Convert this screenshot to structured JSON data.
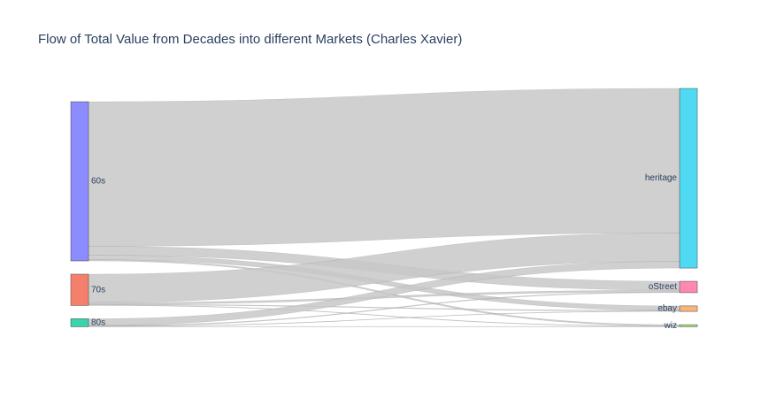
{
  "chart_data": {
    "type": "sankey",
    "title": "Flow of Total Value from Decades into different Markets (Charles Xavier)",
    "nodes": [
      {
        "id": "60s",
        "label": "60s",
        "color": "#8c8cff",
        "side": "source"
      },
      {
        "id": "70s",
        "label": "70s",
        "color": "#f4806c",
        "side": "source"
      },
      {
        "id": "80s",
        "label": "80s",
        "color": "#3ad3ad",
        "side": "source"
      },
      {
        "id": "heritage",
        "label": "heritage",
        "color": "#4fd9f2",
        "side": "target"
      },
      {
        "id": "oStreet",
        "label": "oStreet",
        "color": "#ff89b0",
        "side": "target"
      },
      {
        "id": "ebay",
        "label": "ebay",
        "color": "#f9b47c",
        "side": "target"
      },
      {
        "id": "wiz",
        "label": "wiz",
        "color": "#a7e27a",
        "side": "target"
      }
    ],
    "links": [
      {
        "source": "60s",
        "target": "heritage",
        "value": 163
      },
      {
        "source": "60s",
        "target": "oStreet",
        "value": 10
      },
      {
        "source": "60s",
        "target": "ebay",
        "value": 5
      },
      {
        "source": "60s",
        "target": "wiz",
        "value": 1.5
      },
      {
        "source": "70s",
        "target": "heritage",
        "value": 32
      },
      {
        "source": "70s",
        "target": "oStreet",
        "value": 2
      },
      {
        "source": "70s",
        "target": "ebay",
        "value": 0.8
      },
      {
        "source": "70s",
        "target": "wiz",
        "value": 0.5
      },
      {
        "source": "80s",
        "target": "heritage",
        "value": 7.5
      },
      {
        "source": "80s",
        "target": "oStreet",
        "value": 0.8
      },
      {
        "source": "80s",
        "target": "ebay",
        "value": 0.4
      },
      {
        "source": "80s",
        "target": "wiz",
        "value": 0.3
      }
    ],
    "link_color": "#c8c8c8",
    "node_outline_color": "#444444"
  }
}
